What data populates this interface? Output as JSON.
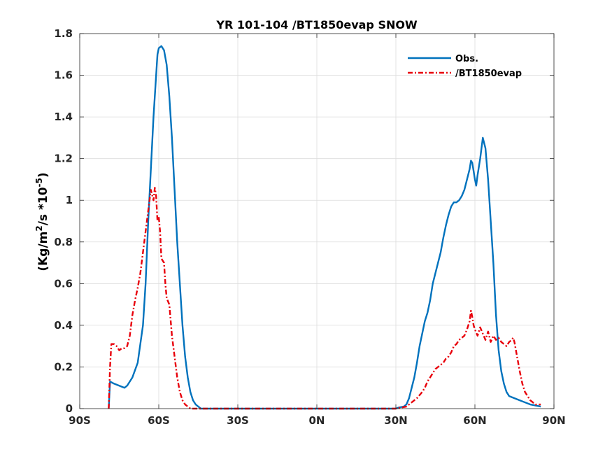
{
  "chart_data": {
    "type": "line",
    "title": "YR 101-104 /BT1850evap SNOW",
    "ylabel_parts": {
      "pre": "(Kg/m",
      "sup1": "2",
      "mid": "/s *10",
      "sup2": "-5",
      "post": ")"
    },
    "xlim": [
      -90,
      90
    ],
    "ylim": [
      0,
      1.8
    ],
    "x_ticks": [
      -90,
      -60,
      -30,
      0,
      30,
      60,
      90
    ],
    "x_tick_labels": [
      "90S",
      "60S",
      "30S",
      "0N",
      "30N",
      "60N",
      "90N"
    ],
    "y_ticks": [
      0,
      0.2,
      0.4,
      0.6,
      0.8,
      1,
      1.2,
      1.4,
      1.6,
      1.8
    ],
    "y_tick_labels": [
      "0",
      "0.2",
      "0.4",
      "0.6",
      "0.8",
      "1",
      "1.2",
      "1.4",
      "1.6",
      "1.8"
    ],
    "grid": true,
    "legend_position": "top-right",
    "series": [
      {
        "name": "Obs.",
        "color": "#0072BD",
        "style": "solid",
        "points": [
          [
            -79,
            0
          ],
          [
            -78.5,
            0.13
          ],
          [
            -77,
            0.12
          ],
          [
            -75,
            0.11
          ],
          [
            -73,
            0.1
          ],
          [
            -72,
            0.11
          ],
          [
            -70,
            0.15
          ],
          [
            -68,
            0.22
          ],
          [
            -66,
            0.4
          ],
          [
            -65,
            0.6
          ],
          [
            -64,
            0.9
          ],
          [
            -63,
            1.15
          ],
          [
            -62,
            1.4
          ],
          [
            -61,
            1.6
          ],
          [
            -60.5,
            1.7
          ],
          [
            -60,
            1.73
          ],
          [
            -59,
            1.74
          ],
          [
            -58,
            1.72
          ],
          [
            -57,
            1.65
          ],
          [
            -56,
            1.5
          ],
          [
            -55,
            1.3
          ],
          [
            -54,
            1.05
          ],
          [
            -53,
            0.8
          ],
          [
            -52,
            0.6
          ],
          [
            -51,
            0.4
          ],
          [
            -50,
            0.25
          ],
          [
            -49,
            0.15
          ],
          [
            -48,
            0.08
          ],
          [
            -47,
            0.04
          ],
          [
            -46,
            0.02
          ],
          [
            -45,
            0.01
          ],
          [
            -44,
            0
          ],
          [
            -30,
            0
          ],
          [
            0,
            0
          ],
          [
            20,
            0
          ],
          [
            30,
            0
          ],
          [
            31,
            0.005
          ],
          [
            33,
            0.01
          ],
          [
            34,
            0.02
          ],
          [
            35,
            0.05
          ],
          [
            36,
            0.1
          ],
          [
            37,
            0.15
          ],
          [
            38,
            0.22
          ],
          [
            39,
            0.3
          ],
          [
            40,
            0.36
          ],
          [
            41,
            0.42
          ],
          [
            42,
            0.46
          ],
          [
            43,
            0.52
          ],
          [
            44,
            0.6
          ],
          [
            45,
            0.65
          ],
          [
            46,
            0.7
          ],
          [
            47,
            0.75
          ],
          [
            48,
            0.82
          ],
          [
            49,
            0.88
          ],
          [
            50,
            0.93
          ],
          [
            51,
            0.97
          ],
          [
            52,
            0.99
          ],
          [
            53,
            0.99
          ],
          [
            54,
            1.0
          ],
          [
            55,
            1.02
          ],
          [
            56,
            1.05
          ],
          [
            57,
            1.1
          ],
          [
            58,
            1.15
          ],
          [
            58.5,
            1.19
          ],
          [
            59,
            1.18
          ],
          [
            60,
            1.1
          ],
          [
            60.5,
            1.07
          ],
          [
            61,
            1.12
          ],
          [
            62,
            1.2
          ],
          [
            63,
            1.3
          ],
          [
            64,
            1.25
          ],
          [
            65,
            1.1
          ],
          [
            66,
            0.9
          ],
          [
            67,
            0.7
          ],
          [
            68,
            0.45
          ],
          [
            69,
            0.28
          ],
          [
            70,
            0.18
          ],
          [
            71,
            0.12
          ],
          [
            72,
            0.08
          ],
          [
            73,
            0.06
          ],
          [
            75,
            0.05
          ],
          [
            77,
            0.04
          ],
          [
            79,
            0.03
          ],
          [
            81,
            0.02
          ],
          [
            83,
            0.015
          ],
          [
            85,
            0.01
          ]
        ]
      },
      {
        "name": "/BT1850evap",
        "color": "#E8000B",
        "style": "dashdot",
        "points": [
          [
            -79,
            0
          ],
          [
            -78.5,
            0.2
          ],
          [
            -78,
            0.31
          ],
          [
            -77,
            0.31
          ],
          [
            -76,
            0.3
          ],
          [
            -75,
            0.28
          ],
          [
            -74,
            0.29
          ],
          [
            -73,
            0.29
          ],
          [
            -72,
            0.3
          ],
          [
            -71,
            0.35
          ],
          [
            -70,
            0.45
          ],
          [
            -69,
            0.52
          ],
          [
            -68,
            0.58
          ],
          [
            -67,
            0.65
          ],
          [
            -66,
            0.75
          ],
          [
            -65,
            0.85
          ],
          [
            -64,
            0.95
          ],
          [
            -63,
            1.05
          ],
          [
            -62,
            1.0
          ],
          [
            -61.5,
            1.06
          ],
          [
            -61,
            1.02
          ],
          [
            -60.5,
            0.9
          ],
          [
            -60,
            0.92
          ],
          [
            -59.5,
            0.85
          ],
          [
            -59,
            0.72
          ],
          [
            -58,
            0.7
          ],
          [
            -57.5,
            0.6
          ],
          [
            -57,
            0.53
          ],
          [
            -56,
            0.5
          ],
          [
            -55,
            0.35
          ],
          [
            -54,
            0.25
          ],
          [
            -53,
            0.15
          ],
          [
            -52,
            0.08
          ],
          [
            -51,
            0.04
          ],
          [
            -50,
            0.02
          ],
          [
            -49,
            0.01
          ],
          [
            -48,
            0
          ],
          [
            -30,
            0
          ],
          [
            0,
            0
          ],
          [
            20,
            0
          ],
          [
            30,
            0
          ],
          [
            32,
            0.005
          ],
          [
            34,
            0.01
          ],
          [
            35,
            0.02
          ],
          [
            36,
            0.03
          ],
          [
            38,
            0.05
          ],
          [
            40,
            0.08
          ],
          [
            41,
            0.1
          ],
          [
            42,
            0.13
          ],
          [
            43,
            0.15
          ],
          [
            44,
            0.17
          ],
          [
            45,
            0.19
          ],
          [
            46,
            0.2
          ],
          [
            47,
            0.21
          ],
          [
            48,
            0.22
          ],
          [
            49,
            0.24
          ],
          [
            50,
            0.25
          ],
          [
            51,
            0.27
          ],
          [
            52,
            0.3
          ],
          [
            53,
            0.31
          ],
          [
            54,
            0.33
          ],
          [
            55,
            0.34
          ],
          [
            56,
            0.35
          ],
          [
            57,
            0.38
          ],
          [
            58,
            0.42
          ],
          [
            58.5,
            0.47
          ],
          [
            59,
            0.44
          ],
          [
            59.5,
            0.4
          ],
          [
            60,
            0.38
          ],
          [
            61,
            0.35
          ],
          [
            62,
            0.39
          ],
          [
            63,
            0.36
          ],
          [
            64,
            0.33
          ],
          [
            65,
            0.37
          ],
          [
            66,
            0.32
          ],
          [
            67,
            0.35
          ],
          [
            68,
            0.33
          ],
          [
            69,
            0.34
          ],
          [
            70,
            0.32
          ],
          [
            71,
            0.31
          ],
          [
            72,
            0.3
          ],
          [
            73,
            0.32
          ],
          [
            74,
            0.33
          ],
          [
            74.5,
            0.34
          ],
          [
            75,
            0.32
          ],
          [
            76,
            0.25
          ],
          [
            77,
            0.18
          ],
          [
            78,
            0.12
          ],
          [
            79,
            0.08
          ],
          [
            80,
            0.06
          ],
          [
            81,
            0.04
          ],
          [
            82,
            0.03
          ],
          [
            83,
            0.02
          ],
          [
            85,
            0.02
          ]
        ]
      }
    ]
  }
}
